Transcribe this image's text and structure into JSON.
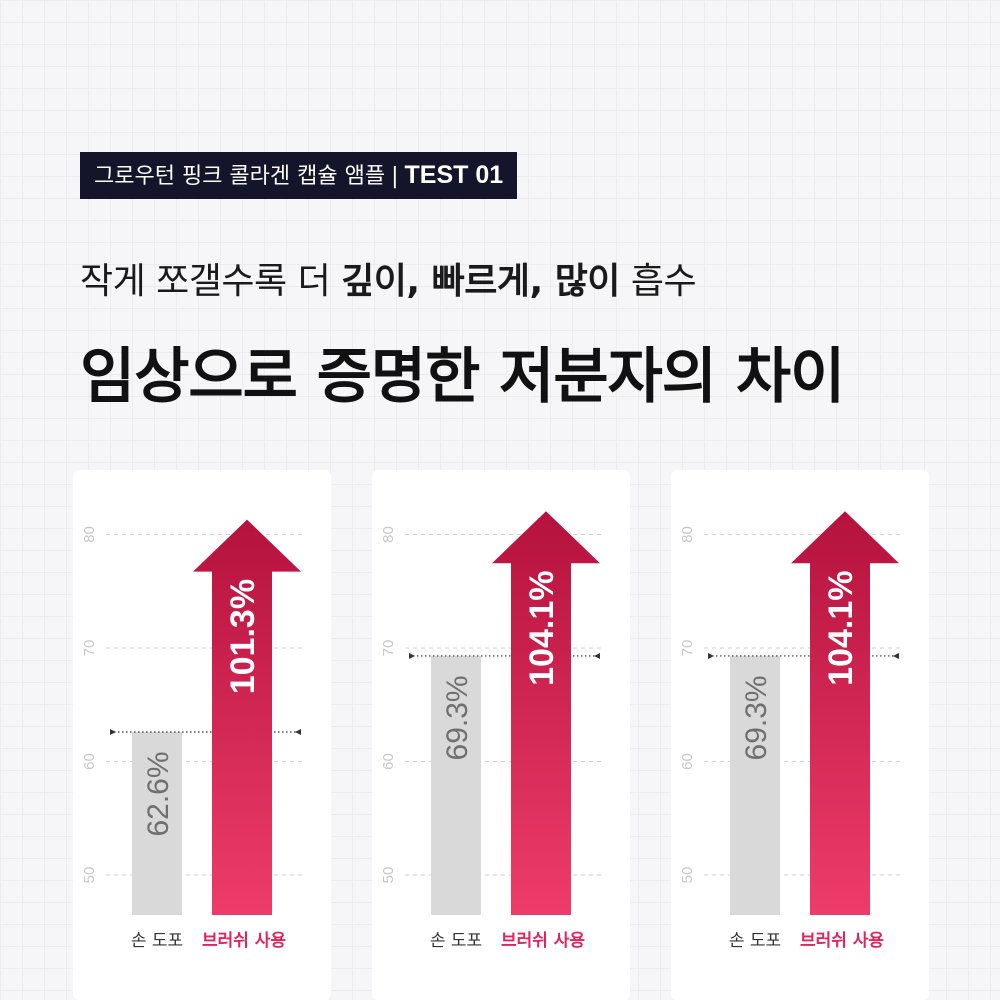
{
  "header": {
    "tag_text": "그로우턴 핑크 콜라겐 캡슐 앰플",
    "tag_separator": "|",
    "tag_test": "TEST 01",
    "subtitle_plain": "작게 쪼갤수록 더 ",
    "subtitle_strong": "깊이, 빠르게, 많이",
    "subtitle_tail": " 흡수",
    "title": "임상으로 증명한 저분자의 차이"
  },
  "colors": {
    "accent": "#e0245e",
    "arrow_top": "#b5123e",
    "arrow_bottom": "#ee3c6a",
    "gray_bar": "#d9d9d9",
    "dark": "#14142b"
  },
  "chart_data": [
    {
      "type": "bar",
      "categories": [
        "손 도포",
        "브러쉬 사용"
      ],
      "values": [
        62.6,
        101.3
      ],
      "value_labels": [
        "62.6%",
        "101.3%"
      ],
      "yticks": [
        "50",
        "60",
        "70",
        "80"
      ],
      "ylim": [
        50,
        80
      ],
      "grid": true
    },
    {
      "type": "bar",
      "categories": [
        "손 도포",
        "브러쉬 사용"
      ],
      "values": [
        69.3,
        104.1
      ],
      "value_labels": [
        "69.3%",
        "104.1%"
      ],
      "yticks": [
        "50",
        "60",
        "70",
        "80"
      ],
      "ylim": [
        50,
        80
      ],
      "grid": true
    },
    {
      "type": "bar",
      "categories": [
        "손 도포",
        "브러쉬 사용"
      ],
      "values": [
        69.3,
        104.1
      ],
      "value_labels": [
        "69.3%",
        "104.1%"
      ],
      "yticks": [
        "50",
        "60",
        "70",
        "80"
      ],
      "ylim": [
        50,
        80
      ],
      "grid": true
    }
  ]
}
